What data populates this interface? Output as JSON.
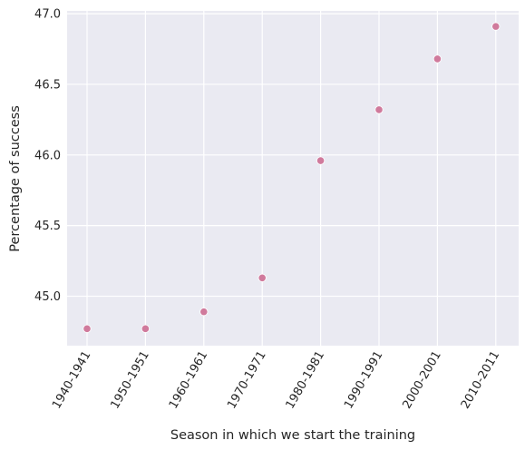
{
  "chart_data": {
    "type": "scatter",
    "title": "",
    "xlabel": "Season in which we start the training",
    "ylabel": "Percentage of success",
    "categories": [
      "1940-1941",
      "1950-1951",
      "1960-1961",
      "1970-1971",
      "1980-1981",
      "1990-1991",
      "2000-2001",
      "2010-2011"
    ],
    "values": [
      44.77,
      44.77,
      44.89,
      45.13,
      45.96,
      46.32,
      46.68,
      46.91
    ],
    "yticks": [
      "45.0",
      "45.5",
      "46.0",
      "46.5",
      "47.0"
    ],
    "ylim": [
      44.65,
      47.02
    ],
    "grid": true,
    "background": "#EAEAF2",
    "marker_color": "#D07A9C"
  }
}
